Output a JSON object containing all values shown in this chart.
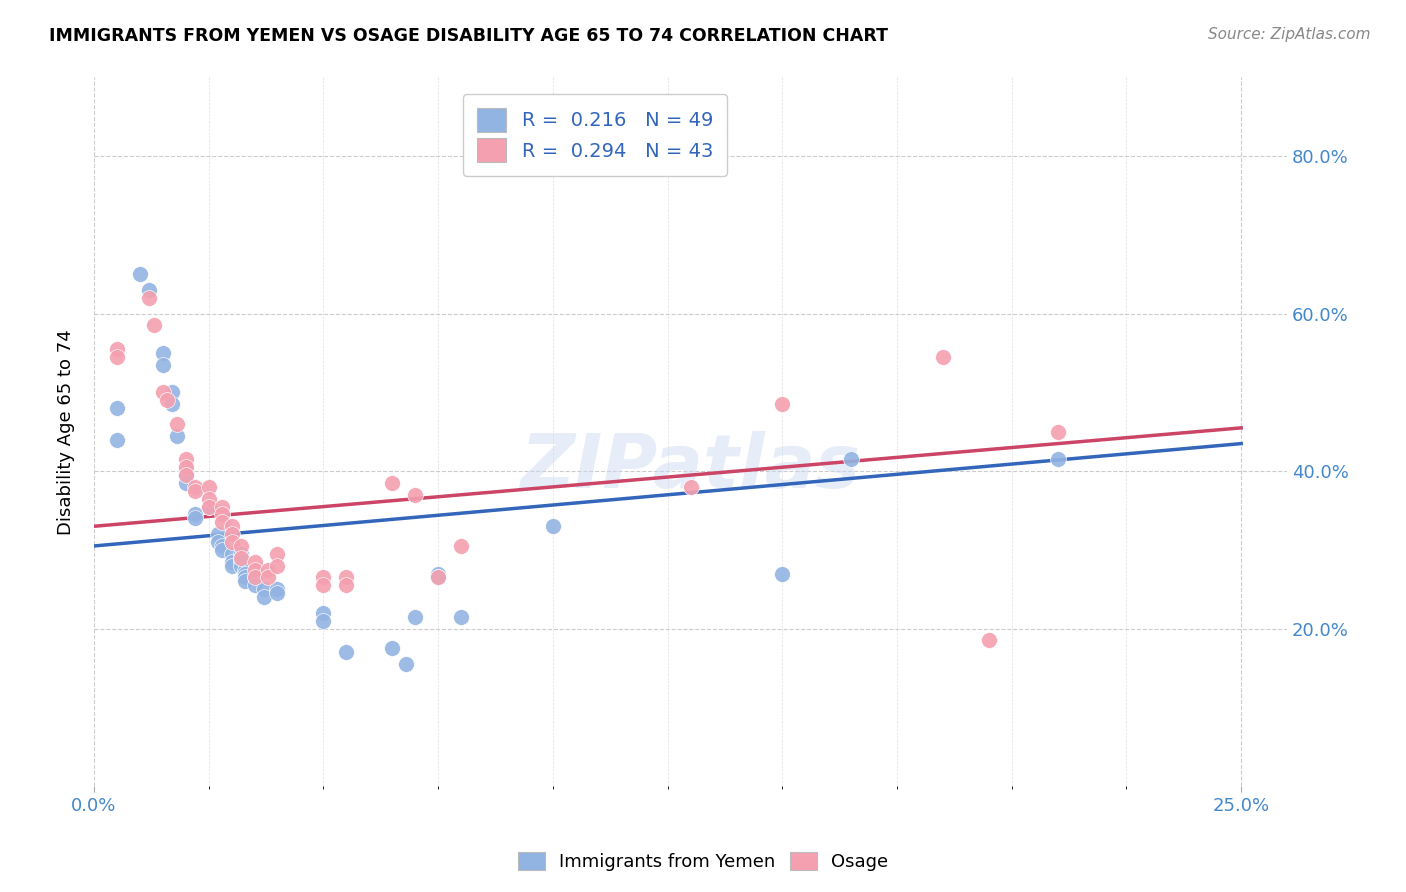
{
  "title": "IMMIGRANTS FROM YEMEN VS OSAGE DISABILITY AGE 65 TO 74 CORRELATION CHART",
  "source": "Source: ZipAtlas.com",
  "ylabel": "Disability Age 65 to 74",
  "watermark": "ZIPatlas",
  "legend_blue_r": "0.216",
  "legend_blue_n": "49",
  "legend_pink_r": "0.294",
  "legend_pink_n": "43",
  "legend_label_blue": "Immigrants from Yemen",
  "legend_label_pink": "Osage",
  "blue_color": "#92b4e3",
  "pink_color": "#f4a0b0",
  "blue_line_color": "#3366bb",
  "pink_line_color": "#cc4466",
  "blue_scatter": [
    [
      0.005,
      0.48
    ],
    [
      0.005,
      0.44
    ],
    [
      0.01,
      0.65
    ],
    [
      0.012,
      0.63
    ],
    [
      0.015,
      0.55
    ],
    [
      0.015,
      0.535
    ],
    [
      0.017,
      0.5
    ],
    [
      0.017,
      0.485
    ],
    [
      0.018,
      0.445
    ],
    [
      0.02,
      0.4
    ],
    [
      0.02,
      0.395
    ],
    [
      0.02,
      0.385
    ],
    [
      0.022,
      0.345
    ],
    [
      0.022,
      0.34
    ],
    [
      0.025,
      0.355
    ],
    [
      0.027,
      0.32
    ],
    [
      0.027,
      0.31
    ],
    [
      0.028,
      0.305
    ],
    [
      0.028,
      0.3
    ],
    [
      0.03,
      0.295
    ],
    [
      0.03,
      0.285
    ],
    [
      0.03,
      0.28
    ],
    [
      0.032,
      0.295
    ],
    [
      0.032,
      0.29
    ],
    [
      0.032,
      0.285
    ],
    [
      0.032,
      0.28
    ],
    [
      0.033,
      0.275
    ],
    [
      0.033,
      0.27
    ],
    [
      0.033,
      0.265
    ],
    [
      0.033,
      0.26
    ],
    [
      0.035,
      0.265
    ],
    [
      0.035,
      0.255
    ],
    [
      0.037,
      0.25
    ],
    [
      0.037,
      0.24
    ],
    [
      0.04,
      0.25
    ],
    [
      0.04,
      0.245
    ],
    [
      0.05,
      0.22
    ],
    [
      0.05,
      0.21
    ],
    [
      0.055,
      0.17
    ],
    [
      0.065,
      0.175
    ],
    [
      0.068,
      0.155
    ],
    [
      0.07,
      0.215
    ],
    [
      0.075,
      0.27
    ],
    [
      0.075,
      0.265
    ],
    [
      0.08,
      0.215
    ],
    [
      0.1,
      0.33
    ],
    [
      0.15,
      0.27
    ],
    [
      0.165,
      0.415
    ],
    [
      0.21,
      0.415
    ]
  ],
  "pink_scatter": [
    [
      0.005,
      0.555
    ],
    [
      0.005,
      0.545
    ],
    [
      0.012,
      0.62
    ],
    [
      0.013,
      0.585
    ],
    [
      0.015,
      0.5
    ],
    [
      0.016,
      0.49
    ],
    [
      0.018,
      0.46
    ],
    [
      0.02,
      0.415
    ],
    [
      0.02,
      0.405
    ],
    [
      0.02,
      0.395
    ],
    [
      0.022,
      0.38
    ],
    [
      0.022,
      0.375
    ],
    [
      0.025,
      0.38
    ],
    [
      0.025,
      0.365
    ],
    [
      0.025,
      0.355
    ],
    [
      0.028,
      0.355
    ],
    [
      0.028,
      0.345
    ],
    [
      0.028,
      0.335
    ],
    [
      0.03,
      0.33
    ],
    [
      0.03,
      0.32
    ],
    [
      0.03,
      0.31
    ],
    [
      0.032,
      0.305
    ],
    [
      0.032,
      0.29
    ],
    [
      0.035,
      0.285
    ],
    [
      0.035,
      0.275
    ],
    [
      0.035,
      0.265
    ],
    [
      0.038,
      0.275
    ],
    [
      0.038,
      0.265
    ],
    [
      0.04,
      0.295
    ],
    [
      0.04,
      0.28
    ],
    [
      0.05,
      0.265
    ],
    [
      0.05,
      0.255
    ],
    [
      0.055,
      0.265
    ],
    [
      0.055,
      0.255
    ],
    [
      0.065,
      0.385
    ],
    [
      0.07,
      0.37
    ],
    [
      0.075,
      0.265
    ],
    [
      0.08,
      0.305
    ],
    [
      0.13,
      0.38
    ],
    [
      0.15,
      0.485
    ],
    [
      0.185,
      0.545
    ],
    [
      0.195,
      0.185
    ],
    [
      0.21,
      0.45
    ]
  ],
  "xlim": [
    0.0,
    0.26
  ],
  "ylim": [
    0.0,
    0.9
  ],
  "blue_line_x": [
    0.0,
    0.25
  ],
  "blue_line_y": [
    0.305,
    0.435
  ],
  "pink_line_x": [
    0.0,
    0.25
  ],
  "pink_line_y": [
    0.33,
    0.455
  ]
}
